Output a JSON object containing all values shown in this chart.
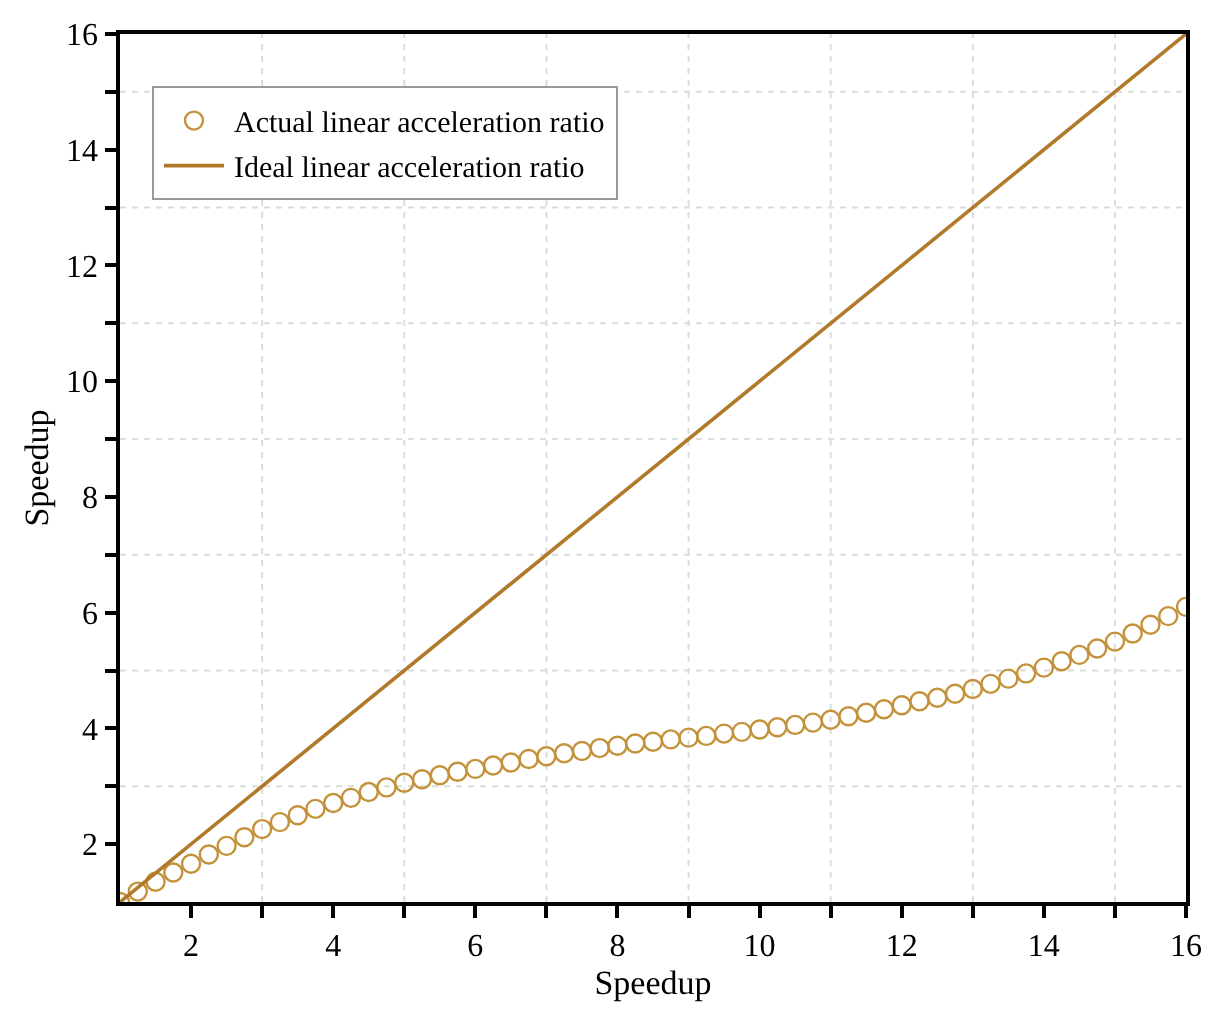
{
  "chart_data": {
    "type": "scatter",
    "xlabel": "Speedup",
    "ylabel": "Speedup",
    "xlim": [
      1,
      16
    ],
    "ylim": [
      1,
      16
    ],
    "xticks": [
      2,
      {
        "value": 3,
        "label": null
      },
      4,
      {
        "value": 5,
        "label": null
      },
      6,
      {
        "value": 7,
        "label": null
      },
      8,
      {
        "value": 9,
        "label": null
      },
      10,
      {
        "value": 11,
        "label": null
      },
      12,
      {
        "value": 13,
        "label": null
      },
      14,
      {
        "value": 15,
        "label": null
      },
      16
    ],
    "yticks": [
      2,
      {
        "value": 3,
        "label": null
      },
      4,
      {
        "value": 5,
        "label": null
      },
      6,
      {
        "value": 7,
        "label": null
      },
      8,
      {
        "value": 9,
        "label": null
      },
      10,
      {
        "value": 11,
        "label": null
      },
      12,
      {
        "value": 13,
        "label": null
      },
      14,
      {
        "value": 15,
        "label": null
      },
      16
    ],
    "grid": true,
    "legend": "top left",
    "series": [
      {
        "name": "Actual linear acceleration ratio",
        "marker": "circle",
        "color": "#c4923a",
        "x": [
          1,
          1.25,
          1.5,
          1.75,
          2,
          2.25,
          2.5,
          2.75,
          3,
          3.25,
          3.5,
          3.75,
          4,
          4.25,
          4.5,
          4.75,
          5,
          5.25,
          5.5,
          5.75,
          6,
          6.25,
          6.5,
          6.75,
          7,
          7.25,
          7.5,
          7.75,
          8,
          8.25,
          8.5,
          8.75,
          9,
          9.25,
          9.5,
          9.75,
          10,
          10.25,
          10.5,
          10.75,
          11,
          11.25,
          11.5,
          11.75,
          12,
          12.25,
          12.5,
          12.75,
          13,
          13.25,
          13.5,
          13.75,
          14,
          14.25,
          14.5,
          14.75,
          15,
          15.25,
          15.5,
          15.75,
          16
        ],
        "values": [
          1.0,
          1.18,
          1.35,
          1.51,
          1.66,
          1.82,
          1.97,
          2.12,
          2.26,
          2.38,
          2.5,
          2.61,
          2.71,
          2.8,
          2.9,
          2.98,
          3.06,
          3.12,
          3.19,
          3.25,
          3.3,
          3.36,
          3.41,
          3.47,
          3.52,
          3.57,
          3.61,
          3.66,
          3.7,
          3.74,
          3.77,
          3.81,
          3.84,
          3.87,
          3.91,
          3.94,
          3.98,
          4.02,
          4.06,
          4.1,
          4.15,
          4.21,
          4.27,
          4.33,
          4.4,
          4.47,
          4.53,
          4.6,
          4.68,
          4.77,
          4.86,
          4.95,
          5.05,
          5.16,
          5.27,
          5.38,
          5.5,
          5.64,
          5.79,
          5.94,
          6.1
        ]
      },
      {
        "name": "Ideal linear acceleration ratio",
        "type": "line",
        "marker": "none",
        "line_style": "solid",
        "color": "#b07a2a",
        "x": [
          1,
          16
        ],
        "values": [
          1,
          16
        ]
      }
    ]
  }
}
